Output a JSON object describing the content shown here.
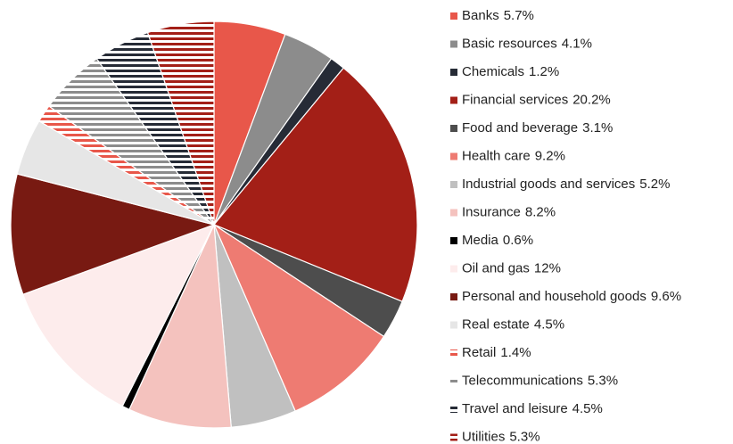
{
  "chart_data": {
    "type": "pie",
    "categories": [
      "Banks",
      "Basic resources",
      "Chemicals",
      "Financial services",
      "Food and beverage",
      "Health care",
      "Industrial goods and services",
      "Insurance",
      "Media",
      "Oil and gas",
      "Personal and household goods",
      "Real estate",
      "Retail",
      "Telecommunications",
      "Travel and leisure",
      "Utilities"
    ],
    "values": [
      5.7,
      4.1,
      1.2,
      20.2,
      3.1,
      9.2,
      5.2,
      8.2,
      0.6,
      12,
      9.6,
      4.5,
      1.4,
      5.3,
      4.5,
      5.3
    ],
    "value_labels": [
      "5.7%",
      "4.1%",
      "1.2%",
      "20.2%",
      "3.1%",
      "9.2%",
      "5.2%",
      "8.2%",
      "0.6%",
      "12%",
      "9.6%",
      "4.5%",
      "1.4%",
      "5.3%",
      "4.5%",
      "5.3%"
    ],
    "colors": [
      "#e8574a",
      "#8c8c8c",
      "#262b36",
      "#a31f17",
      "#4d4d4d",
      "#ee7b72",
      "#c0c0c0",
      "#f4c2be",
      "#000000",
      "#fdecec",
      "#781a12",
      "#e6e6e6",
      "#e8574a",
      "#8c8c8c",
      "#262b36",
      "#a31f17"
    ],
    "striped": [
      false,
      false,
      false,
      false,
      false,
      false,
      false,
      false,
      false,
      false,
      false,
      false,
      true,
      true,
      true,
      true
    ],
    "legend": "right"
  }
}
